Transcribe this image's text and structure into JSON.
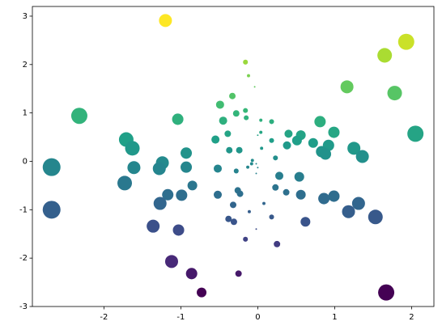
{
  "chart_data": {
    "type": "scatter",
    "colormap": "viridis",
    "color_by": "y",
    "x": [
      -1.2,
      1.93,
      1.65,
      1.16,
      1.78,
      2.05,
      -2.32,
      -2.68,
      -2.68,
      -1.71,
      -1.63,
      -1.61,
      -1.73,
      -1.24,
      -1.28,
      -1.04,
      -0.93,
      -0.93,
      -1.17,
      -0.85,
      -0.99,
      -1.27,
      -1.36,
      -1.03,
      -1.12,
      -0.86,
      -0.73,
      -0.25,
      1.67,
      0.25,
      -0.16,
      -0.02,
      -0.31,
      -0.38,
      -0.11,
      0.18,
      0.08,
      0.62,
      0.86,
      0.99,
      1.18,
      1.31,
      1.53,
      0.56,
      0.37,
      0.23,
      0.28,
      0.54,
      0.56,
      0.51,
      0.4,
      0.38,
      0.72,
      0.81,
      0.99,
      0.92,
      0.83,
      0.88,
      1.25,
      1.36,
      -0.16,
      -0.12,
      -0.04,
      -0.33,
      -0.49,
      -0.28,
      -0.16,
      -0.15,
      0.04,
      0.18,
      -0.45,
      -0.39,
      -0.55,
      0.04,
      -0.37,
      -0.24,
      0.0,
      0.05,
      0.18,
      0.23,
      -0.07,
      -0.02,
      -0.13,
      0.0,
      -0.02,
      -0.28,
      -0.08,
      -0.52,
      -0.26,
      -0.23,
      -0.52,
      -0.32
    ],
    "y": [
      2.91,
      2.47,
      2.19,
      1.54,
      1.41,
      0.57,
      0.94,
      -0.12,
      -1.0,
      0.45,
      0.27,
      -0.13,
      -0.45,
      -0.03,
      -0.15,
      0.87,
      0.17,
      -0.12,
      -0.69,
      -0.5,
      -0.7,
      -0.87,
      -1.34,
      -1.42,
      -2.07,
      -2.32,
      -2.71,
      -2.32,
      -2.71,
      -1.71,
      -1.61,
      -1.4,
      -1.25,
      -1.19,
      -1.04,
      -1.15,
      -0.87,
      -1.25,
      -0.77,
      -0.72,
      -1.04,
      -0.87,
      -1.15,
      -0.69,
      -0.64,
      -0.54,
      -0.3,
      -0.32,
      0.54,
      0.43,
      0.57,
      0.33,
      0.38,
      0.82,
      0.6,
      0.33,
      0.2,
      0.15,
      0.27,
      0.1,
      2.05,
      1.77,
      1.54,
      1.35,
      1.17,
      0.99,
      1.05,
      0.9,
      0.85,
      0.82,
      0.84,
      0.57,
      0.45,
      0.6,
      0.23,
      0.23,
      0.54,
      0.27,
      0.43,
      0.07,
      0.02,
      -0.05,
      -0.12,
      -0.13,
      -0.25,
      -0.2,
      -0.05,
      -0.15,
      -0.6,
      -0.67,
      -0.69,
      -0.9
    ],
    "sizes": [
      133,
      207,
      168,
      133,
      168,
      207,
      207,
      251,
      251,
      168,
      168,
      133,
      168,
      133,
      133,
      102,
      102,
      102,
      102,
      75,
      102,
      133,
      133,
      102,
      133,
      102,
      75,
      33,
      207,
      33,
      19,
      2,
      33,
      33,
      8,
      19,
      8,
      75,
      102,
      102,
      133,
      133,
      168,
      75,
      33,
      33,
      52,
      75,
      75,
      75,
      52,
      52,
      75,
      102,
      102,
      102,
      102,
      102,
      133,
      133,
      19,
      8,
      2,
      33,
      52,
      33,
      19,
      19,
      8,
      19,
      52,
      33,
      52,
      8,
      33,
      33,
      2,
      8,
      19,
      19,
      8,
      2,
      8,
      2,
      2,
      19,
      8,
      52,
      33,
      33,
      52,
      33
    ],
    "xlim": [
      -2.93,
      2.29
    ],
    "ylim": [
      -3.0,
      3.2
    ],
    "xticks": [
      -2,
      -1,
      0,
      1,
      2
    ],
    "yticks": [
      -3,
      -2,
      -1,
      0,
      1,
      2,
      3
    ]
  }
}
